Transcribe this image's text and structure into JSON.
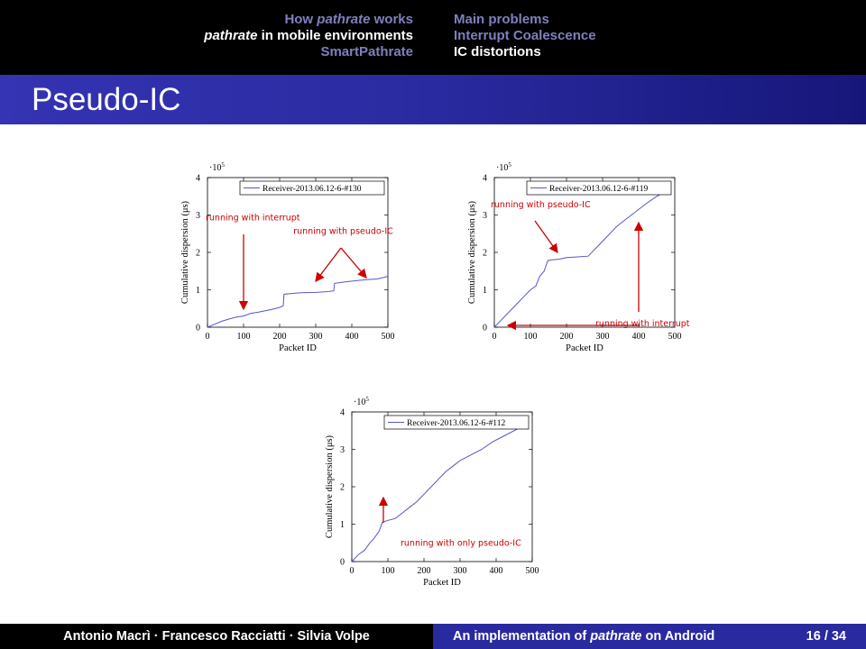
{
  "nav": {
    "left": [
      {
        "pre": "How ",
        "em": "pathrate",
        "post": " works",
        "current": false
      },
      {
        "pre": "",
        "em": "pathrate",
        "post": " in mobile environments",
        "current": true
      },
      {
        "pre": "SmartPathrate",
        "em": "",
        "post": "",
        "current": false
      }
    ],
    "right": [
      {
        "label": "Main problems",
        "current": false
      },
      {
        "label": "Interrupt Coalescence",
        "current": false
      },
      {
        "label": "IC distortions",
        "current": true
      }
    ]
  },
  "frame_title": "Pseudo-IC",
  "colors": {
    "top_bar": "#000000",
    "title_bar": "#2a2aa0",
    "inactive_nav": "#7f7fbf",
    "series": "#5555cc",
    "annotation": "#cc0000"
  },
  "chart_data": [
    {
      "type": "line",
      "xlabel": "Packet ID",
      "ylabel": "Cumulative dispersion (μs)",
      "ylabel_math": "μs",
      "y_multiplier": "·10",
      "y_multiplier_exp": "5",
      "xlim": [
        0,
        500
      ],
      "ylim": [
        0,
        4
      ],
      "xticks": [
        0,
        100,
        200,
        300,
        400,
        500
      ],
      "yticks": [
        0,
        1,
        2,
        3,
        4
      ],
      "series": [
        {
          "name": "Receiver-2013.06.12-6-#130",
          "points": [
            [
              0,
              0
            ],
            [
              10,
              0.04
            ],
            [
              25,
              0.1
            ],
            [
              40,
              0.16
            ],
            [
              60,
              0.22
            ],
            [
              80,
              0.27
            ],
            [
              100,
              0.3
            ],
            [
              120,
              0.37
            ],
            [
              140,
              0.4
            ],
            [
              160,
              0.44
            ],
            [
              180,
              0.48
            ],
            [
              200,
              0.53
            ],
            [
              210,
              0.57
            ],
            [
              212,
              0.88
            ],
            [
              230,
              0.9
            ],
            [
              260,
              0.92
            ],
            [
              300,
              0.93
            ],
            [
              330,
              0.95
            ],
            [
              350,
              0.97
            ],
            [
              352,
              1.17
            ],
            [
              380,
              1.21
            ],
            [
              410,
              1.24
            ],
            [
              440,
              1.27
            ],
            [
              470,
              1.29
            ],
            [
              500,
              1.36
            ]
          ]
        }
      ],
      "annotations": [
        {
          "text": "running with interrupt",
          "x": -5,
          "y": 2.85
        },
        {
          "text": "running with pseudo-IC",
          "x": 238,
          "y": 2.5
        }
      ]
    },
    {
      "type": "line",
      "xlabel": "Packet ID",
      "ylabel": "Cumulative dispersion (μs)",
      "ylabel_math": "μs",
      "y_multiplier": "·10",
      "y_multiplier_exp": "5",
      "xlim": [
        0,
        500
      ],
      "ylim": [
        0,
        4
      ],
      "xticks": [
        0,
        100,
        200,
        300,
        400,
        500
      ],
      "yticks": [
        0,
        1,
        2,
        3,
        4
      ],
      "series": [
        {
          "name": "Receiver-2013.06.12-6-#119",
          "points": [
            [
              0,
              0
            ],
            [
              20,
              0.2
            ],
            [
              40,
              0.4
            ],
            [
              60,
              0.6
            ],
            [
              80,
              0.8
            ],
            [
              100,
              1.0
            ],
            [
              115,
              1.1
            ],
            [
              125,
              1.35
            ],
            [
              138,
              1.5
            ],
            [
              148,
              1.78
            ],
            [
              160,
              1.8
            ],
            [
              180,
              1.82
            ],
            [
              200,
              1.86
            ],
            [
              230,
              1.88
            ],
            [
              260,
              1.9
            ],
            [
              300,
              2.3
            ],
            [
              340,
              2.7
            ],
            [
              380,
              3.0
            ],
            [
              420,
              3.3
            ],
            [
              450,
              3.5
            ],
            [
              460,
              3.55
            ]
          ]
        }
      ],
      "annotations": [
        {
          "text": "running with pseudo-IC",
          "x": -10,
          "y": 3.2
        },
        {
          "text": "running with interrupt",
          "x": 280,
          "y": 0.02
        }
      ]
    },
    {
      "type": "line",
      "xlabel": "Packet ID",
      "ylabel": "Cumulative dispersion (μs)",
      "ylabel_math": "μs",
      "y_multiplier": "·10",
      "y_multiplier_exp": "5",
      "xlim": [
        0,
        500
      ],
      "ylim": [
        0,
        4
      ],
      "xticks": [
        0,
        100,
        200,
        300,
        400,
        500
      ],
      "yticks": [
        0,
        1,
        2,
        3,
        4
      ],
      "series": [
        {
          "name": "Receiver-2013.06.12-6-#112",
          "points": [
            [
              0,
              0
            ],
            [
              10,
              0.1
            ],
            [
              20,
              0.2
            ],
            [
              35,
              0.3
            ],
            [
              50,
              0.5
            ],
            [
              60,
              0.6
            ],
            [
              75,
              0.8
            ],
            [
              85,
              1.05
            ],
            [
              100,
              1.1
            ],
            [
              120,
              1.15
            ],
            [
              140,
              1.3
            ],
            [
              160,
              1.45
            ],
            [
              180,
              1.6
            ],
            [
              200,
              1.8
            ],
            [
              220,
              2.0
            ],
            [
              240,
              2.2
            ],
            [
              260,
              2.4
            ],
            [
              280,
              2.55
            ],
            [
              300,
              2.7
            ],
            [
              330,
              2.85
            ],
            [
              360,
              3.0
            ],
            [
              390,
              3.2
            ],
            [
              420,
              3.35
            ],
            [
              460,
              3.55
            ]
          ]
        }
      ],
      "annotations": [
        {
          "text": "running with only pseudo-IC",
          "x": 135,
          "y": 0.42
        }
      ]
    }
  ],
  "footer": {
    "authors": "Antonio Macrì · Francesco Racciatti · Silvia Volpe",
    "title_pre": "An implementation of ",
    "title_em": "pathrate",
    "title_post": " on Android",
    "page": "16 / 34"
  }
}
